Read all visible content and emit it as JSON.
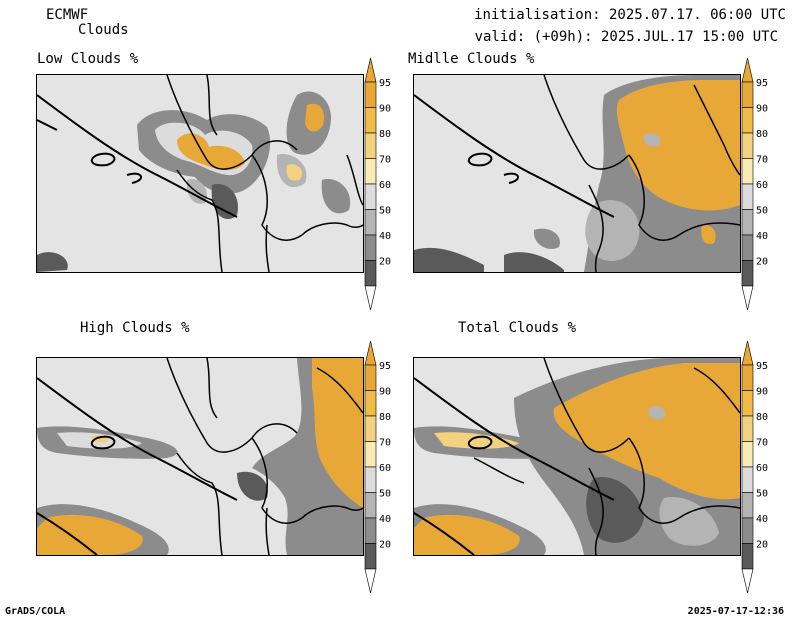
{
  "header": {
    "source": "ECMWF",
    "product": "Clouds",
    "init": "initialisation: 2025.07.17. 06:00 UTC",
    "valid": "valid: (+09h): 2025.JUL.17 15:00 UTC"
  },
  "panels": [
    {
      "title": "Low Clouds %",
      "field": "low"
    },
    {
      "title": "Midlle Clouds %",
      "field": "mid"
    },
    {
      "title": "High Clouds %",
      "field": "high"
    },
    {
      "title": "Total Clouds %",
      "field": "total"
    }
  ],
  "colorbar": {
    "ticks": [
      "95",
      "90",
      "80",
      "70",
      "60",
      "50",
      "40",
      "20"
    ],
    "colors": [
      "#e8a838",
      "#f0bc48",
      "#f2d27e",
      "#f6ecb4",
      "#dcdcdc",
      "#b4b4b4",
      "#8c8c8c",
      "#5a5a5a"
    ],
    "above_color": "#e8a838",
    "below_color": "#ffffff"
  },
  "footer": {
    "left": "GrADS/COLA",
    "right": "2025-07-17-12:36"
  }
}
